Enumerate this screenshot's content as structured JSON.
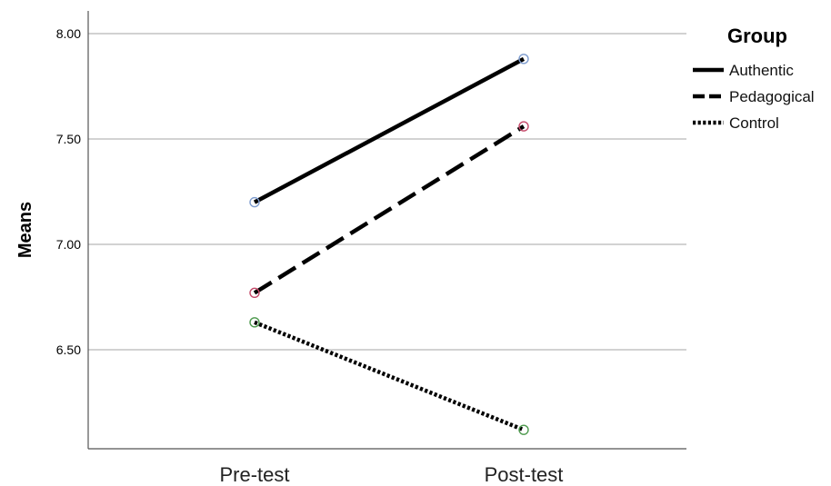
{
  "chart_data": {
    "type": "line",
    "ylabel": "Means",
    "xlabel": "",
    "categories": [
      "Pre-test",
      "Post-test"
    ],
    "ylim": [
      6.0,
      8.1
    ],
    "yticks": [
      6.5,
      7.0,
      7.5,
      8.0
    ],
    "ytick_labels": [
      "6.50",
      "7.00",
      "7.50",
      "8.00"
    ],
    "grid": "horizontal",
    "legend": {
      "title": "Group",
      "placement": "right"
    },
    "series": [
      {
        "name": "Authentic",
        "values": [
          7.2,
          7.88
        ],
        "line_style": "solid",
        "marker_color": "#7e9ccf"
      },
      {
        "name": "Pedagogical",
        "values": [
          6.77,
          7.56
        ],
        "line_style": "dashed",
        "marker_color": "#c44a6a"
      },
      {
        "name": "Control",
        "values": [
          6.63,
          6.12
        ],
        "line_style": "dotted",
        "marker_color": "#4e9a4e"
      }
    ]
  }
}
